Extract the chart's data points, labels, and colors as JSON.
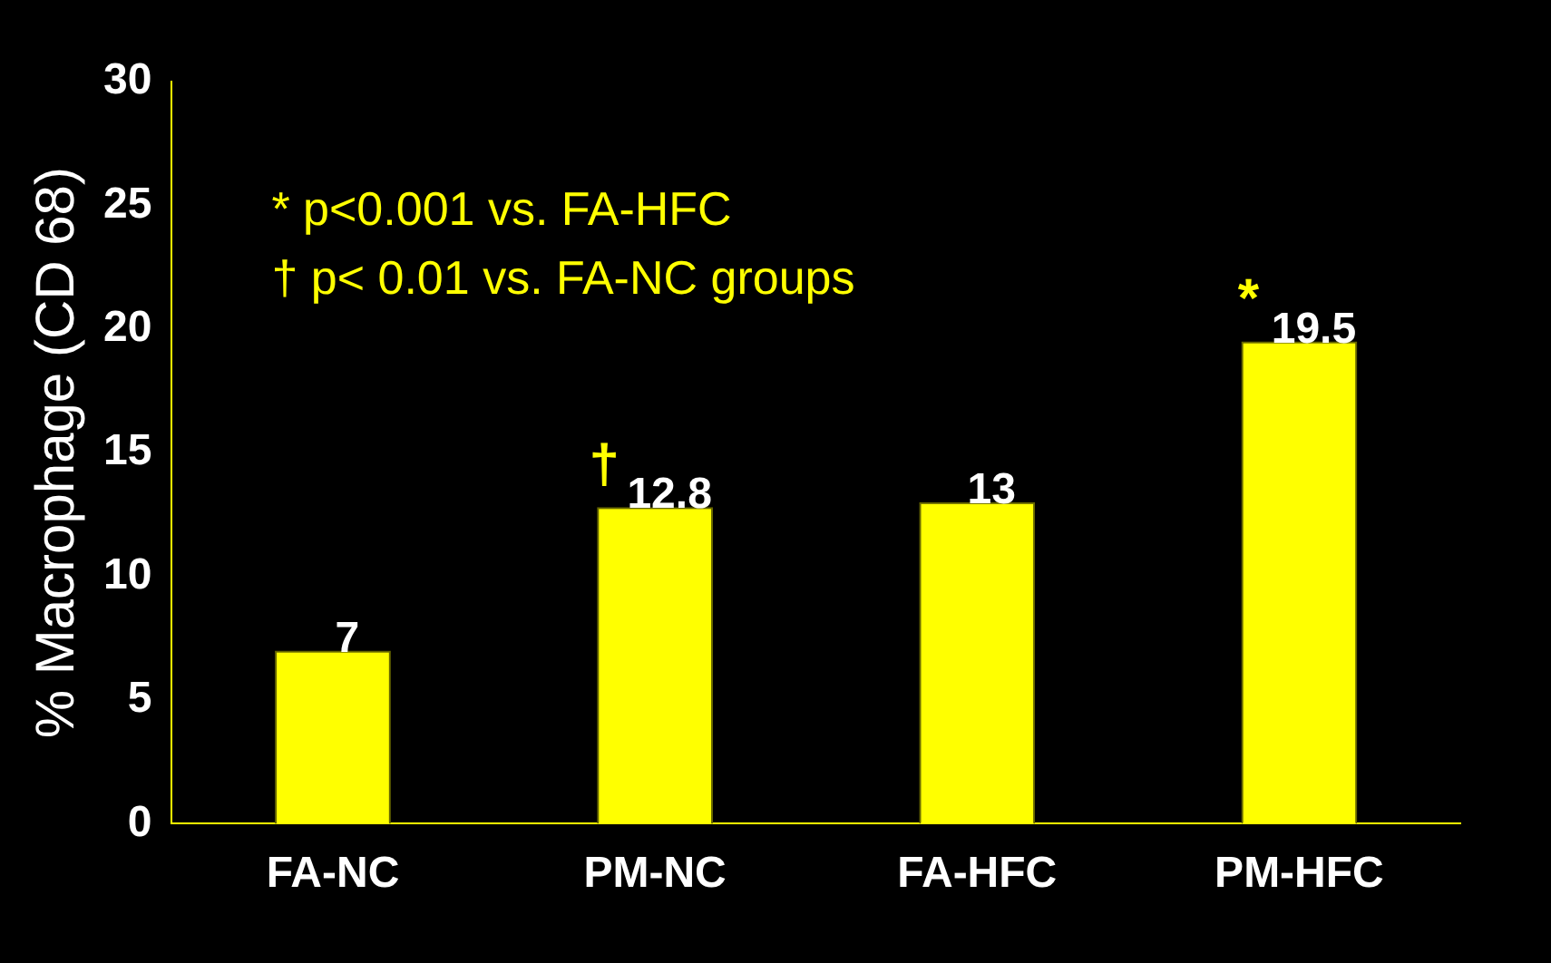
{
  "chart_data": {
    "type": "bar",
    "ylabel": "% Macrophage (CD 68)",
    "categories": [
      "FA-NC",
      "PM-NC",
      "FA-HFC",
      "PM-HFC"
    ],
    "values": [
      7,
      12.8,
      13,
      19.5
    ],
    "color": "#ffff00",
    "ylim": [
      0,
      30
    ],
    "yticks": [
      0,
      5,
      10,
      15,
      20,
      25,
      30
    ],
    "grid": false,
    "data_labels": true,
    "annotations": [
      "* p<0.001 vs. FA-HFC",
      "† p< 0.01 vs. FA-NC groups",
      {
        "text": "†",
        "x": "PM-NC",
        "y": 12.8
      },
      {
        "text": "*",
        "x": "PM-HFC",
        "y": 19.5
      }
    ]
  }
}
